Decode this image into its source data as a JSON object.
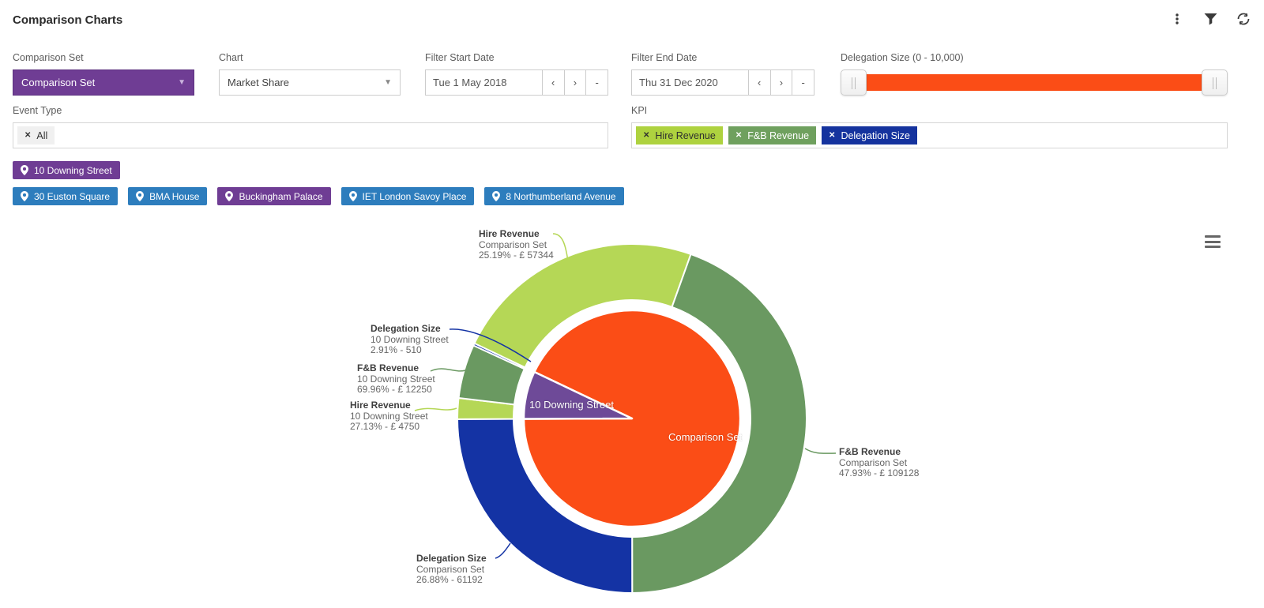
{
  "header": {
    "title": "Comparison Charts"
  },
  "toolbar": {
    "menu_icon": "kebab-menu",
    "filter_icon": "filter-funnel",
    "refresh_icon": "refresh-sync"
  },
  "filters": {
    "comparison_set": {
      "label": "Comparison Set",
      "value": "Comparison Set"
    },
    "chart": {
      "label": "Chart",
      "value": "Market Share"
    },
    "start_date": {
      "label": "Filter Start Date",
      "value": "Tue 1 May 2018",
      "prev": "‹",
      "next": "›",
      "clear": "-"
    },
    "end_date": {
      "label": "Filter End Date",
      "value": "Thu 31 Dec 2020",
      "prev": "‹",
      "next": "›",
      "clear": "-"
    },
    "delegation_size": {
      "label": "Delegation Size (0 - 10,000)",
      "min": 0,
      "max": 10000,
      "track_color": "#FB4D16"
    },
    "event_type": {
      "label": "Event Type",
      "tags": [
        {
          "text": "All",
          "remove": "✕"
        }
      ]
    },
    "kpi": {
      "label": "KPI",
      "tags": [
        {
          "text": "Hire Revenue",
          "remove": "✕",
          "bg": "#AED23F",
          "fg": "#2f2f2f"
        },
        {
          "text": "F&B Revenue",
          "remove": "✕",
          "bg": "#6FA05E",
          "fg": "#ffffff"
        },
        {
          "text": "Delegation Size",
          "remove": "✕",
          "bg": "#15339E",
          "fg": "#ffffff"
        }
      ]
    }
  },
  "locations": {
    "selected": [
      {
        "text": "10 Downing Street",
        "bg": "#6F3D94"
      }
    ],
    "available": [
      {
        "text": "30 Euston Square",
        "bg": "#2D7DBD"
      },
      {
        "text": "BMA House",
        "bg": "#2D7DBD"
      },
      {
        "text": "Buckingham Palace",
        "bg": "#6F3D94"
      },
      {
        "text": "IET London Savoy Place",
        "bg": "#2D7DBD"
      },
      {
        "text": "8 Northumberland Avenue",
        "bg": "#2D7DBD"
      }
    ]
  },
  "chart_data": {
    "type": "pie",
    "subtype": "two-level-donut",
    "title": "",
    "legend": "none",
    "start_angle_deg": -64.5,
    "inner_series": [
      {
        "name": "Comparison Set",
        "value": 227664,
        "color": "#FB4D16"
      },
      {
        "name": "10 Downing Street",
        "value": 17510,
        "color": "#6E4A98"
      }
    ],
    "outer_series": [
      {
        "kpi": "Hire Revenue",
        "set": "Comparison Set",
        "pct": 25.19,
        "display": "25.19% - £ 57344",
        "value": 57344,
        "color": "#B5D756"
      },
      {
        "kpi": "F&B Revenue",
        "set": "Comparison Set",
        "pct": 47.93,
        "display": "47.93% - £ 109128",
        "value": 109128,
        "color": "#6A9961"
      },
      {
        "kpi": "Delegation Size",
        "set": "Comparison Set",
        "pct": 26.88,
        "display": "26.88% - 61192",
        "value": 61192,
        "color": "#1433A4"
      },
      {
        "kpi": "Hire Revenue",
        "set": "10 Downing Street",
        "pct": 27.13,
        "display": "27.13% - £ 4750",
        "value": 4750,
        "color": "#B5D756"
      },
      {
        "kpi": "F&B Revenue",
        "set": "10 Downing Street",
        "pct": 69.96,
        "display": "69.96% - £ 12250",
        "value": 12250,
        "color": "#6A9961"
      },
      {
        "kpi": "Delegation Size",
        "set": "10 Downing Street",
        "pct": 2.91,
        "display": "2.91% - 510",
        "value": 510,
        "color": "#1433A4"
      }
    ],
    "context_menu_icon": "hamburger-menu"
  }
}
